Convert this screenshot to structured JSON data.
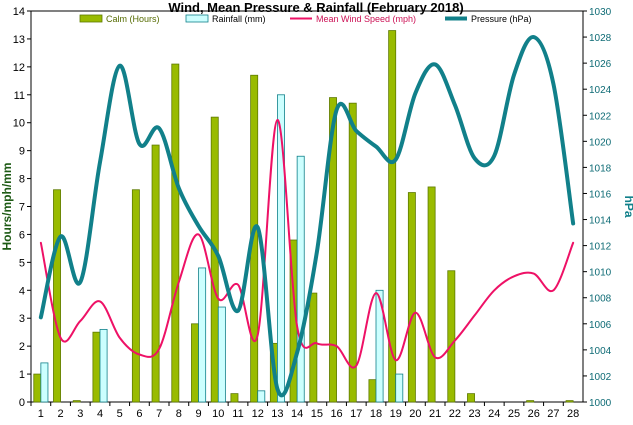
{
  "chart_data": {
    "type": "bar",
    "title": "Wind, Mean Pressure & Rainfall (February 2018)",
    "ylabel": "Hours/mph/mm",
    "y2label": "hPa",
    "categories": [
      "1",
      "2",
      "3",
      "4",
      "5",
      "6",
      "7",
      "8",
      "9",
      "10",
      "11",
      "12",
      "13",
      "14",
      "15",
      "16",
      "17",
      "18",
      "19",
      "20",
      "21",
      "22",
      "23",
      "24",
      "25",
      "26",
      "27",
      "28"
    ],
    "ylim": [
      0,
      14
    ],
    "y_ticks": [
      "0",
      "1",
      "2",
      "3",
      "4",
      "5",
      "6",
      "7",
      "8",
      "9",
      "10",
      "11",
      "12",
      "13",
      "14"
    ],
    "y2lim": [
      1000,
      1030
    ],
    "y2_ticks": [
      "1000",
      "1002",
      "1004",
      "1006",
      "1008",
      "1010",
      "1012",
      "1014",
      "1016",
      "1018",
      "1020",
      "1022",
      "1024",
      "1026",
      "1028",
      "1030"
    ],
    "grid": false,
    "legend_position": "top",
    "series": [
      {
        "name": "Calm (Hours)",
        "kind": "bar",
        "axis": "left",
        "color": "#99bb00",
        "values": [
          1.0,
          7.6,
          0.05,
          2.5,
          0,
          7.6,
          9.2,
          12.1,
          2.8,
          10.2,
          0.3,
          11.7,
          2.1,
          5.8,
          3.9,
          10.9,
          10.7,
          0.8,
          13.3,
          7.5,
          7.7,
          4.7,
          0.3,
          0,
          0,
          0.05,
          0,
          0.05
        ]
      },
      {
        "name": "Rainfall (mm)",
        "kind": "bar",
        "axis": "left",
        "color": "#ccffff",
        "values": [
          1.4,
          0,
          0,
          2.6,
          0,
          0,
          0,
          0,
          4.8,
          3.4,
          0,
          0.4,
          11.0,
          8.8,
          0,
          0,
          0,
          4.0,
          1.0,
          0,
          0,
          0,
          0,
          0,
          0,
          0,
          0,
          0
        ]
      },
      {
        "name": "Mean Wind Speed (mph)",
        "kind": "line",
        "axis": "left",
        "color": "#ee1166",
        "values": [
          5.7,
          2.3,
          2.9,
          3.6,
          2.3,
          1.7,
          1.9,
          4.3,
          6.0,
          3.7,
          4.2,
          2.4,
          10.1,
          2.7,
          2.1,
          2.0,
          1.3,
          3.9,
          1.5,
          3.2,
          1.6,
          2.2,
          3.1,
          4.0,
          4.5,
          4.6,
          4.0,
          5.7
        ]
      },
      {
        "name": "Pressure (hPa)",
        "kind": "line",
        "axis": "right",
        "color": "#11808a",
        "values": [
          1006.5,
          1012.7,
          1009.2,
          1018.4,
          1025.8,
          1019.8,
          1021.0,
          1016.4,
          1013.5,
          1011.2,
          1007.0,
          1013.4,
          1001.0,
          1003.8,
          1011.5,
          1022.4,
          1020.8,
          1019.6,
          1018.6,
          1023.7,
          1025.9,
          1022.8,
          1018.7,
          1018.9,
          1025.1,
          1028.0,
          1024.4,
          1013.7
        ]
      }
    ]
  }
}
